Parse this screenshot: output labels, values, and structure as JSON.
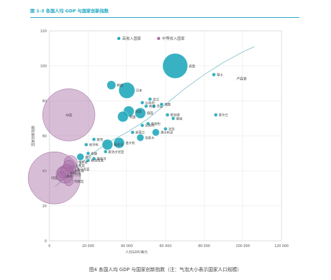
{
  "figure": {
    "title": "图 1-3  各国人均 GDP 与国家创新指数",
    "caption": "图4 各国人均  GDP 与国家创新指数（注：气泡大小表示国家人口规模）"
  },
  "colors": {
    "high_income": "#22aabd",
    "upper_middle_income": "#a96ca6",
    "trend": "#8fc9cf",
    "title": "#23a9c4"
  },
  "chart_data": {
    "type": "scatter",
    "xlabel": "人均GDP/美元",
    "ylabel": "国家创新指数",
    "xlim": [
      0,
      120000
    ],
    "ylim": [
      0,
      120
    ],
    "xticks": [
      0,
      20000,
      40000,
      60000,
      80000,
      100000,
      120000
    ],
    "xtick_labels": [
      "0",
      "20 000",
      "40 000",
      "60 000",
      "80 000",
      "100 000",
      "120 000"
    ],
    "yticks": [
      0,
      20,
      40,
      60,
      80,
      100,
      120
    ],
    "grid": true,
    "legend_position": "top-left",
    "trend_label": "卢森堡",
    "series": [
      {
        "name": "高收入国家",
        "color_key": "high_income",
        "points": [
          {
            "label": "美国",
            "x": 65000,
            "y": 100,
            "size": 7
          },
          {
            "label": "瑞士",
            "x": 85000,
            "y": 95,
            "size": 1
          },
          {
            "label": "韩国",
            "x": 32000,
            "y": 89,
            "size": 2.5
          },
          {
            "label": "日本",
            "x": 40000,
            "y": 86,
            "size": 4.5
          },
          {
            "label": "芬兰",
            "x": 52000,
            "y": 81,
            "size": 1
          },
          {
            "label": "以色列",
            "x": 48000,
            "y": 79,
            "size": 1
          },
          {
            "label": "丹麦",
            "x": 54000,
            "y": 77,
            "size": 1
          },
          {
            "label": "瑞典",
            "x": 58000,
            "y": 78,
            "size": 1
          },
          {
            "label": "荷兰",
            "x": 50000,
            "y": 77,
            "size": 1
          },
          {
            "label": "德国",
            "x": 47000,
            "y": 73,
            "size": 3
          },
          {
            "label": "法国",
            "x": 41000,
            "y": 74,
            "size": 3
          },
          {
            "label": "英国",
            "x": 38000,
            "y": 71,
            "size": 3
          },
          {
            "label": "新加坡",
            "x": 61000,
            "y": 72,
            "size": 1
          },
          {
            "label": "爱尔兰",
            "x": 86000,
            "y": 72,
            "size": 1
          },
          {
            "label": "挪威",
            "x": 64000,
            "y": 70,
            "size": 1
          },
          {
            "label": "奥地利",
            "x": 51000,
            "y": 67,
            "size": 1
          },
          {
            "label": "比利时",
            "x": 48000,
            "y": 66,
            "size": 1
          },
          {
            "label": "澳大利亚",
            "x": 55000,
            "y": 62,
            "size": 2
          },
          {
            "label": "新西兰",
            "x": 43000,
            "y": 62,
            "size": 1
          },
          {
            "label": "冰岛",
            "x": 60000,
            "y": 64,
            "size": 1
          },
          {
            "label": "加拿大",
            "x": 47000,
            "y": 59,
            "size": 2
          },
          {
            "label": "意大利",
            "x": 36000,
            "y": 56,
            "size": 3
          },
          {
            "label": "西班牙",
            "x": 30000,
            "y": 55,
            "size": 3
          },
          {
            "label": "斯洛文尼亚",
            "x": 29000,
            "y": 51,
            "size": 1
          },
          {
            "label": "捷克",
            "x": 23000,
            "y": 58,
            "size": 1
          },
          {
            "label": "匈牙利",
            "x": 19000,
            "y": 55,
            "size": 1
          },
          {
            "label": "希腊",
            "x": 20000,
            "y": 50,
            "size": 1
          },
          {
            "label": "波兰",
            "x": 16000,
            "y": 48,
            "size": 2
          },
          {
            "label": "葡萄牙",
            "x": 23000,
            "y": 47,
            "size": 1
          },
          {
            "label": "斯洛伐克",
            "x": 20000,
            "y": 46,
            "size": 1
          }
        ]
      },
      {
        "name": "中等收入国家",
        "color_key": "upper_middle_income",
        "points": [
          {
            "label": "中国",
            "x": 10000,
            "y": 72,
            "size": 14
          },
          {
            "label": "俄罗斯",
            "x": 11000,
            "y": 45,
            "size": 3
          },
          {
            "label": "土耳其",
            "x": 10000,
            "y": 43,
            "size": 2.5
          },
          {
            "label": "罗马尼亚",
            "x": 12000,
            "y": 41,
            "size": 1.5
          },
          {
            "label": "墨西哥",
            "x": 9000,
            "y": 40,
            "size": 3
          },
          {
            "label": "巴西",
            "x": 8000,
            "y": 38,
            "size": 4
          },
          {
            "label": "泰国",
            "x": 7000,
            "y": 39,
            "size": 2.5
          },
          {
            "label": "南非",
            "x": 6000,
            "y": 37,
            "size": 2
          },
          {
            "label": "阿根廷",
            "x": 10000,
            "y": 34,
            "size": 2
          },
          {
            "label": "印度",
            "x": 2500,
            "y": 36,
            "size": 14
          }
        ]
      }
    ],
    "trend_line": [
      {
        "x": 3000,
        "y": 31
      },
      {
        "x": 10000,
        "y": 38
      },
      {
        "x": 20000,
        "y": 48
      },
      {
        "x": 30000,
        "y": 56
      },
      {
        "x": 40000,
        "y": 62
      },
      {
        "x": 50000,
        "y": 69
      },
      {
        "x": 60000,
        "y": 78
      },
      {
        "x": 70000,
        "y": 87
      },
      {
        "x": 80000,
        "y": 95
      },
      {
        "x": 90000,
        "y": 102
      },
      {
        "x": 100000,
        "y": 108
      },
      {
        "x": 106000,
        "y": 111
      }
    ]
  }
}
